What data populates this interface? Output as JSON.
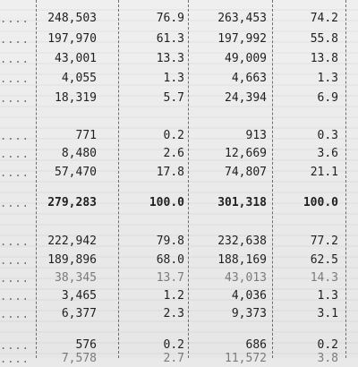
{
  "rows": [
    {
      "label": "....",
      "c1": "248,503",
      "c2": "76.9",
      "c3": "263,453",
      "c4": "74.2",
      "bold": false
    },
    {
      "label": "....",
      "c1": "197,970",
      "c2": "61.3",
      "c3": "197,992",
      "c4": "55.8",
      "bold": false
    },
    {
      "label": "....",
      "c1": "43,001",
      "c2": "13.3",
      "c3": "49,009",
      "c4": "13.8",
      "bold": false
    },
    {
      "label": "....",
      "c1": "4,055",
      "c2": "1.3",
      "c3": "4,663",
      "c4": "1.3",
      "bold": false
    },
    {
      "label": "....",
      "c1": "18,319",
      "c2": "5.7",
      "c3": "24,394",
      "c4": "6.9",
      "bold": false
    },
    {
      "label": "....",
      "c1": "771",
      "c2": "0.2",
      "c3": "913",
      "c4": "0.3",
      "bold": false
    },
    {
      "label": "....",
      "c1": "8,480",
      "c2": "2.6",
      "c3": "12,669",
      "c4": "3.6",
      "bold": false
    },
    {
      "label": "....",
      "c1": "57,470",
      "c2": "17.8",
      "c3": "74,807",
      "c4": "21.1",
      "bold": false
    },
    {
      "label": "....",
      "c1": "279,283",
      "c2": "100.0",
      "c3": "301,318",
      "c4": "100.0",
      "bold": true
    },
    {
      "label": "....",
      "c1": "222,942",
      "c2": "79.8",
      "c3": "232,638",
      "c4": "77.2",
      "bold": false
    },
    {
      "label": "....",
      "c1": "189,896",
      "c2": "68.0",
      "c3": "188,169",
      "c4": "62.5",
      "bold": false
    },
    {
      "label": "....",
      "c1": "38,345",
      "c2": "13.7",
      "c3": "43,013",
      "c4": "14.3",
      "bold": false
    },
    {
      "label": "....",
      "c1": "3,465",
      "c2": "1.2",
      "c3": "4,036",
      "c4": "1.3",
      "bold": false
    },
    {
      "label": "....",
      "c1": "6,377",
      "c2": "2.3",
      "c3": "9,373",
      "c4": "3.1",
      "bold": false
    },
    {
      "label": "....",
      "c1": "576",
      "c2": "0.2",
      "c3": "686",
      "c4": "0.2",
      "bold": false
    },
    {
      "label": "....",
      "c1": "7,578",
      "c2": "2.7",
      "c3": "11,572",
      "c4": "3.8",
      "bold": false
    }
  ]
}
